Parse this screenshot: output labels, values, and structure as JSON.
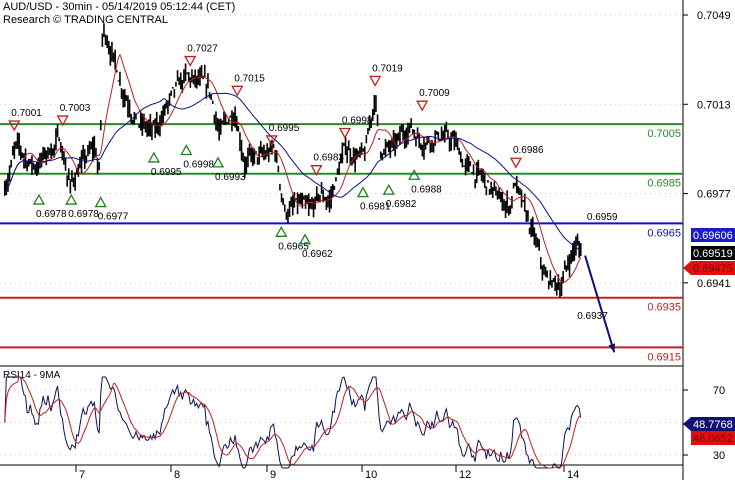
{
  "header": {
    "title": "AUD/USD - 30min - 05/14/2019 05:12:44 (CET)",
    "source": "Research © TRADING CENTRAL"
  },
  "chart_data": {
    "type": "line",
    "instrument": "AUD/USD",
    "timeframe": "30min",
    "x_ticks": [
      7,
      8,
      9,
      10,
      12,
      14
    ],
    "y_ticks": [
      0.7049,
      0.7013,
      0.6977,
      0.6941
    ],
    "ylim": [
      0.6908,
      0.7058
    ],
    "grid": true,
    "price_path": [
      [
        6.25,
        0.698
      ],
      [
        6.36,
        0.6995
      ],
      [
        6.57,
        0.6988
      ],
      [
        6.83,
        0.6999
      ],
      [
        6.94,
        0.698
      ],
      [
        7.04,
        0.6988
      ],
      [
        7.2,
        0.6995
      ],
      [
        7.25,
        0.6984
      ],
      [
        7.28,
        0.7043
      ],
      [
        7.36,
        0.7037
      ],
      [
        7.46,
        0.7023
      ],
      [
        7.67,
        0.7005
      ],
      [
        7.83,
        0.7001
      ],
      [
        7.94,
        0.7011
      ],
      [
        8.15,
        0.7023
      ],
      [
        8.3,
        0.7021
      ],
      [
        8.41,
        0.7017
      ],
      [
        8.51,
        0.7001
      ],
      [
        8.67,
        0.7011
      ],
      [
        8.77,
        0.6991
      ],
      [
        8.98,
        0.6991
      ],
      [
        9.08,
        0.6995
      ],
      [
        9.19,
        0.697
      ],
      [
        9.35,
        0.6972
      ],
      [
        9.45,
        0.6968
      ],
      [
        9.56,
        0.6976
      ],
      [
        9.66,
        0.6974
      ],
      [
        9.82,
        0.6995
      ],
      [
        10.06,
        0.6991
      ],
      [
        10.28,
        0.7017
      ],
      [
        10.38,
        0.6995
      ],
      [
        10.7,
        0.6995
      ],
      [
        11.02,
        0.7005
      ],
      [
        11.23,
        0.6999
      ],
      [
        11.66,
        0.7001
      ],
      [
        11.98,
        0.6997
      ],
      [
        12.17,
        0.6988
      ],
      [
        12.44,
        0.6984
      ],
      [
        12.72,
        0.6976
      ],
      [
        13.0,
        0.6972
      ],
      [
        13.09,
        0.6982
      ],
      [
        13.28,
        0.6968
      ],
      [
        13.46,
        0.6958
      ],
      [
        13.65,
        0.6942
      ],
      [
        13.93,
        0.694
      ],
      [
        14.2,
        0.6956
      ],
      [
        14.33,
        0.6954
      ]
    ],
    "levels": [
      {
        "value": 0.7005,
        "label": "0.7005",
        "color": "#2a8a2a"
      },
      {
        "value": 0.6985,
        "label": "0.6985",
        "color": "#2a8a2a"
      },
      {
        "value": 0.6965,
        "label": "0.6965",
        "color": "#1010c8"
      },
      {
        "value": 0.6935,
        "label": "0.6935",
        "color": "#c82020"
      },
      {
        "value": 0.6915,
        "label": "0.6915",
        "color": "#c82020"
      }
    ],
    "highs": [
      {
        "day": 6.35,
        "price": 0.7001,
        "label": "0.7001"
      },
      {
        "day": 6.86,
        "price": 0.7003,
        "label": "0.7003"
      },
      {
        "day": 8.2,
        "price": 0.7027,
        "label": "0.7027"
      },
      {
        "day": 8.69,
        "price": 0.7015,
        "label": "0.7015"
      },
      {
        "day": 9.05,
        "price": 0.6995,
        "label": "0.6995"
      },
      {
        "day": 9.52,
        "price": 0.6983,
        "label": "0.6983"
      },
      {
        "day": 9.82,
        "price": 0.6998,
        "label": "0.6998"
      },
      {
        "day": 10.28,
        "price": 0.7019,
        "label": "0.7019"
      },
      {
        "day": 11.28,
        "price": 0.7009,
        "label": "0.7009"
      },
      {
        "day": 13.11,
        "price": 0.6986,
        "label": "0.6986"
      },
      {
        "day": 14.48,
        "price": 0.6959,
        "label": "0.6959",
        "marker": false
      }
    ],
    "lows": [
      {
        "day": 6.61,
        "price": 0.6978,
        "label": "0.6978"
      },
      {
        "day": 6.95,
        "price": 0.6978,
        "label": "0.6978"
      },
      {
        "day": 7.26,
        "price": 0.6977,
        "label": "0.6977"
      },
      {
        "day": 7.82,
        "price": 0.6995,
        "label": "0.6995"
      },
      {
        "day": 8.16,
        "price": 0.6998,
        "label": "0.6998"
      },
      {
        "day": 8.49,
        "price": 0.6993,
        "label": "0.6993"
      },
      {
        "day": 9.15,
        "price": 0.6965,
        "label": "0.6965"
      },
      {
        "day": 9.4,
        "price": 0.6962,
        "label": "0.6962"
      },
      {
        "day": 10.02,
        "price": 0.6981,
        "label": "0.6981"
      },
      {
        "day": 10.57,
        "price": 0.6982,
        "label": "0.6982"
      },
      {
        "day": 11.11,
        "price": 0.6988,
        "label": "0.6988"
      },
      {
        "day": 14.3,
        "price": 0.6937,
        "label": "0.6937",
        "marker": false
      }
    ],
    "forecast_arrow": {
      "from": [
        14.39,
        0.6952
      ],
      "to": [
        14.93,
        0.6913
      ],
      "color": "#101070"
    },
    "price_tags": [
      {
        "label": "0.69606",
        "bg": "#1a1ad0",
        "fg": "#ffffff"
      },
      {
        "label": "0.69519",
        "bg": "#000000",
        "fg": "#ffffff"
      },
      {
        "label": "0.69475",
        "bg": "#e01010",
        "fg": "#800000",
        "pointer": true
      }
    ],
    "ma_colors": {
      "fast": "#c02020",
      "slow": "#101080"
    },
    "rsi": {
      "title": "RSI14 - 9MA",
      "y_ticks": [
        70,
        30
      ],
      "ylim": [
        20,
        80
      ],
      "value": "48.7768",
      "ma_value": "46.0652",
      "line_color": "#101050",
      "ma_color": "#c02020"
    }
  }
}
